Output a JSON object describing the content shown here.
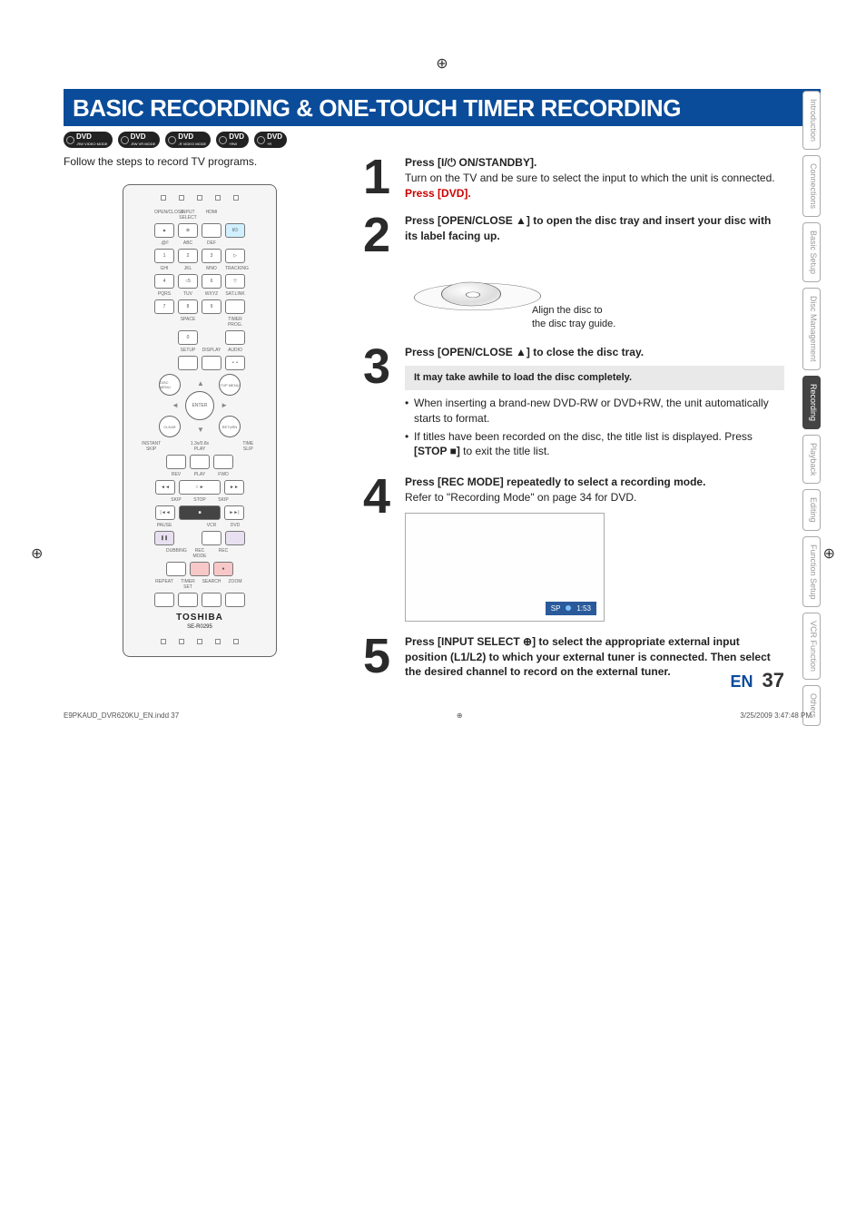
{
  "header_title": "BASIC RECORDING & ONE-TOUCH TIMER RECORDING",
  "dvd_badges": [
    {
      "top": "DVD",
      "bot": "-RW VIDEO MODE"
    },
    {
      "top": "DVD",
      "bot": "-RW VR MODE"
    },
    {
      "top": "DVD",
      "bot": "-R VIDEO MODE"
    },
    {
      "top": "DVD",
      "bot": "+RW"
    },
    {
      "top": "DVD",
      "bot": "+R"
    }
  ],
  "follow_text": "Follow the steps to record TV programs.",
  "remote": {
    "row1_labels": [
      "OPEN/CLOSE",
      "INPUT SELECT",
      "HDMI"
    ],
    "row1_btns": [
      "▲",
      "⊕",
      "",
      "I/⏻"
    ],
    "row2_labels": [
      ".@/!",
      "ABC",
      "DEF"
    ],
    "row2_btns": [
      "1",
      "2",
      "3",
      "▷"
    ],
    "row3_labels": [
      "GHI",
      "JKL",
      "MNO",
      "TRACKING"
    ],
    "row3_btns": [
      "4",
      "○5",
      "6",
      "▽"
    ],
    "row4_labels": [
      "PQRS",
      "TUV",
      "WXYZ",
      "SAT.LINK"
    ],
    "row4_btns": [
      "7",
      "8",
      "9",
      ""
    ],
    "row5_labels": [
      "",
      "SPACE",
      "",
      "TIMER PROG."
    ],
    "row5_btns": [
      "",
      "0",
      "",
      ""
    ],
    "row6_labels": [
      "",
      "SETUP",
      "DISPLAY",
      "AUDIO"
    ],
    "row6_btns": [
      "",
      "",
      "",
      "⚬⚬"
    ],
    "dpad": {
      "tl": "DISC MENU",
      "tr": "TOP MENU",
      "center": "ENTER",
      "bl": "CLEAR",
      "br": "RETURN"
    },
    "row7_labels_a": [
      "INSTANT SKIP",
      "1.3x/0.8x PLAY",
      "TIME SLIP"
    ],
    "row7_btns_a": [
      "",
      "",
      ""
    ],
    "row7_labels": [
      "REV",
      "PLAY",
      "FWD"
    ],
    "row7_btns": [
      "◄◄",
      "○ ►",
      "►►"
    ],
    "row8_labels": [
      "SKIP",
      "STOP",
      "SKIP"
    ],
    "row8_btns": [
      "|◄◄",
      "■",
      "►►|"
    ],
    "row9_labels": [
      "PAUSE",
      "",
      "VCR",
      "DVD"
    ],
    "row9_btns": [
      "❚❚",
      "",
      "",
      ""
    ],
    "row10_labels": [
      "DUBBING",
      "REC MODE",
      "REC"
    ],
    "row10_btns": [
      "",
      "",
      "●"
    ],
    "row11_labels": [
      "REPEAT",
      "TIMER SET",
      "SEARCH",
      "ZOOM"
    ],
    "row11_btns": [
      "",
      "",
      "",
      ""
    ],
    "brand": "TOSHIBA",
    "model": "SE-R0295"
  },
  "steps": {
    "s1": {
      "num": "1",
      "bold": "Press [I/⏻ ON/STANDBY].",
      "text": "Turn on the TV and be sure to select the input to which the unit is connected.",
      "red": "Press [DVD]."
    },
    "s2": {
      "num": "2",
      "bold": "Press [OPEN/CLOSE ▲] to open the disc tray and insert your disc with its label facing up.",
      "caption_a": "Align the disc to",
      "caption_b": "the disc tray guide."
    },
    "s3": {
      "num": "3",
      "bold": "Press [OPEN/CLOSE ▲] to close the disc tray.",
      "note": "It may take awhile to load the disc completely.",
      "b1": "When inserting a brand-new DVD-RW or DVD+RW, the unit automatically starts to format.",
      "b2_a": "If titles have been recorded on the disc, the title list is displayed. Press ",
      "b2_bold": "[STOP ■]",
      "b2_b": " to exit the title list."
    },
    "s4": {
      "num": "4",
      "bold": "Press [REC MODE] repeatedly to select a recording mode.",
      "text": "Refer to \"Recording Mode\" on page 34 for DVD.",
      "status_sp": "SP",
      "status_time": "1:53"
    },
    "s5": {
      "num": "5",
      "bold": "Press [INPUT SELECT ⊕] to select the appropriate external input position (L1/L2) to which your external tuner is connected. Then select the desired channel to record on the external tuner."
    }
  },
  "sidebar": {
    "tabs": [
      "Introduction",
      "Connections",
      "Basic Setup",
      "Disc Management",
      "Recording",
      "Playback",
      "Editing",
      "Function Setup",
      "VCR Function",
      "Others"
    ],
    "active": "Recording"
  },
  "footer": {
    "en": "EN",
    "page": "37",
    "file": "E9PKAUD_DVR620KU_EN.indd   37",
    "date": "3/25/2009   3:47:48 PM"
  }
}
